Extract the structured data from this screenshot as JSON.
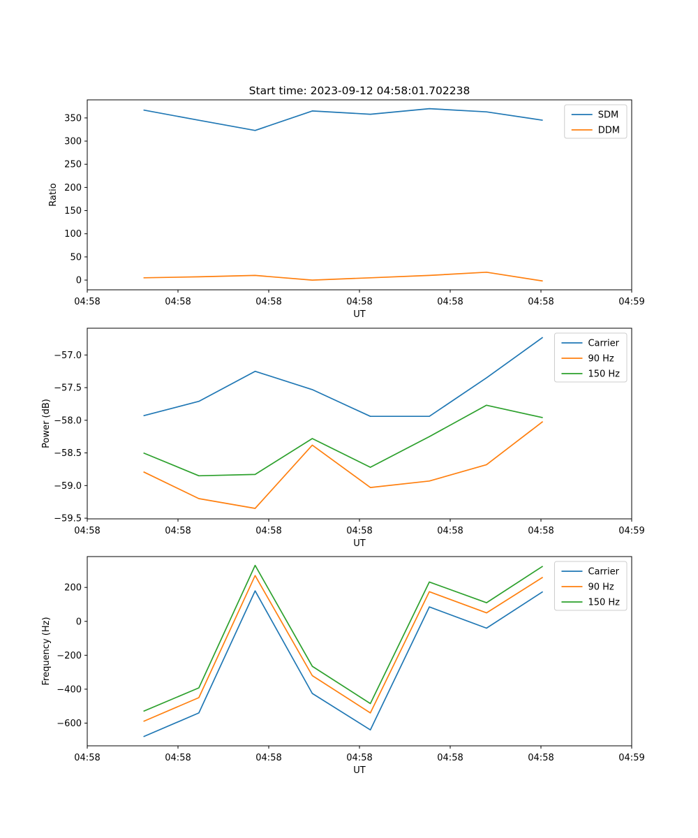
{
  "title": "Start time: 2023-09-12 04:58:01.702238",
  "chart_data": [
    {
      "type": "line",
      "ylabel": "Ratio",
      "xlabel": "UT",
      "x": [
        6.2,
        12.3,
        18.5,
        24.8,
        31.2,
        37.7,
        44.0,
        50.2
      ],
      "xlim": [
        0,
        60
      ],
      "xticks": [
        0,
        10,
        20,
        30,
        40,
        50,
        60
      ],
      "xtick_labels": [
        "04:58",
        "04:58",
        "04:58",
        "04:58",
        "04:58",
        "04:58",
        "04:59"
      ],
      "ylim": [
        -21,
        389
      ],
      "yticks": [
        0,
        50,
        100,
        150,
        200,
        250,
        300,
        350
      ],
      "ytick_labels": [
        "0",
        "50",
        "100",
        "150",
        "200",
        "250",
        "300",
        "350"
      ],
      "grid": false,
      "legend_position": "upper right",
      "series": [
        {
          "name": "SDM",
          "color": "#1f77b4",
          "values": [
            367,
            345,
            323,
            365,
            358,
            370,
            363,
            345
          ]
        },
        {
          "name": "DDM",
          "color": "#ff7f0e",
          "values": [
            5,
            7,
            10,
            0,
            5,
            10,
            17,
            -2
          ]
        }
      ]
    },
    {
      "type": "line",
      "ylabel": "Power (dB)",
      "xlabel": "UT",
      "x": [
        6.2,
        12.3,
        18.5,
        24.8,
        31.2,
        37.7,
        44.0,
        50.2
      ],
      "xlim": [
        0,
        60
      ],
      "xticks": [
        0,
        10,
        20,
        30,
        40,
        50,
        60
      ],
      "xtick_labels": [
        "04:58",
        "04:58",
        "04:58",
        "04:58",
        "04:58",
        "04:58",
        "04:59"
      ],
      "ylim": [
        -59.51,
        -56.59
      ],
      "yticks": [
        -59.5,
        -59.0,
        -58.5,
        -58.0,
        -57.5,
        -57.0
      ],
      "ytick_labels": [
        "−59.5",
        "−59.0",
        "−58.5",
        "−58.0",
        "−57.5",
        "−57.0"
      ],
      "grid": false,
      "legend_position": "upper right",
      "series": [
        {
          "name": "Carrier",
          "color": "#1f77b4",
          "values": [
            -57.93,
            -57.71,
            -57.25,
            -57.53,
            -57.94,
            -57.94,
            -57.35,
            -56.73
          ]
        },
        {
          "name": "90 Hz",
          "color": "#ff7f0e",
          "values": [
            -58.79,
            -59.2,
            -59.35,
            -58.38,
            -59.03,
            -58.93,
            -58.68,
            -58.02
          ]
        },
        {
          "name": "150 Hz",
          "color": "#2ca02c",
          "values": [
            -58.5,
            -58.85,
            -58.83,
            -58.28,
            -58.72,
            -58.25,
            -57.77,
            -57.96
          ]
        }
      ]
    },
    {
      "type": "line",
      "ylabel": "Frequency (Hz)",
      "xlabel": "UT",
      "x": [
        6.2,
        12.3,
        18.5,
        24.8,
        31.2,
        37.7,
        44.0,
        50.2
      ],
      "xlim": [
        0,
        60
      ],
      "xticks": [
        0,
        10,
        20,
        30,
        40,
        50,
        60
      ],
      "xtick_labels": [
        "04:58",
        "04:58",
        "04:58",
        "04:58",
        "04:58",
        "04:58",
        "04:59"
      ],
      "ylim": [
        -734,
        382
      ],
      "yticks": [
        -600,
        -400,
        -200,
        0,
        200
      ],
      "ytick_labels": [
        "−600",
        "−400",
        "−200",
        "0",
        "200"
      ],
      "grid": false,
      "legend_position": "upper right",
      "series": [
        {
          "name": "Carrier",
          "color": "#1f77b4",
          "values": [
            -680,
            -540,
            180,
            -425,
            -640,
            85,
            -40,
            175
          ]
        },
        {
          "name": "90 Hz",
          "color": "#ff7f0e",
          "values": [
            -590,
            -450,
            270,
            -320,
            -540,
            175,
            50,
            260
          ]
        },
        {
          "name": "150 Hz",
          "color": "#2ca02c",
          "values": [
            -530,
            -392,
            330,
            -265,
            -485,
            232,
            110,
            325
          ]
        }
      ]
    }
  ]
}
